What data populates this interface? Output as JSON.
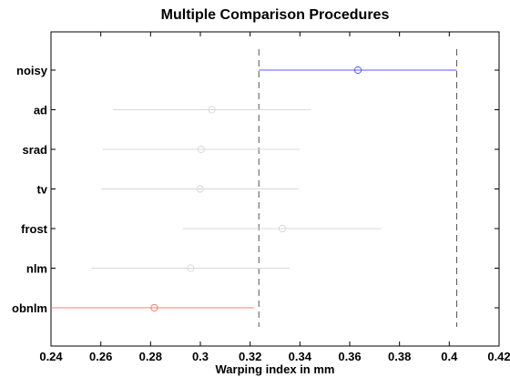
{
  "chart_data": {
    "type": "interval",
    "title": "Multiple Comparison Procedures",
    "xlabel": "Warping index in mm",
    "ylabel": "",
    "xlim": [
      0.24,
      0.42
    ],
    "xticks": [
      "0.24",
      "0.26",
      "0.28",
      "0.3",
      "0.32",
      "0.34",
      "0.36",
      "0.38",
      "0.4",
      "0.42"
    ],
    "xtick_values": [
      0.24,
      0.26,
      0.28,
      0.3,
      0.32,
      0.34,
      0.36,
      0.38,
      0.4,
      0.42
    ],
    "reference_lines": [
      0.3235,
      0.403
    ],
    "groups": [
      {
        "label": "noisy",
        "mean": 0.3633,
        "low": 0.3235,
        "high": 0.403,
        "color": "#5b5bff"
      },
      {
        "label": "ad",
        "mean": 0.3046,
        "low": 0.2648,
        "high": 0.3444,
        "color": "#d9d9d9"
      },
      {
        "label": "srad",
        "mean": 0.3003,
        "low": 0.2607,
        "high": 0.3399,
        "color": "#d9d9d9"
      },
      {
        "label": "tv",
        "mean": 0.2999,
        "low": 0.2601,
        "high": 0.3397,
        "color": "#d9d9d9"
      },
      {
        "label": "frost",
        "mean": 0.3329,
        "low": 0.2931,
        "high": 0.3727,
        "color": "#d9d9d9"
      },
      {
        "label": "nlm",
        "mean": 0.2961,
        "low": 0.2563,
        "high": 0.3359,
        "color": "#d9d9d9"
      },
      {
        "label": "obnlm",
        "mean": 0.2815,
        "low": 0.24,
        "high": 0.3215,
        "color": "#f08070"
      }
    ]
  }
}
